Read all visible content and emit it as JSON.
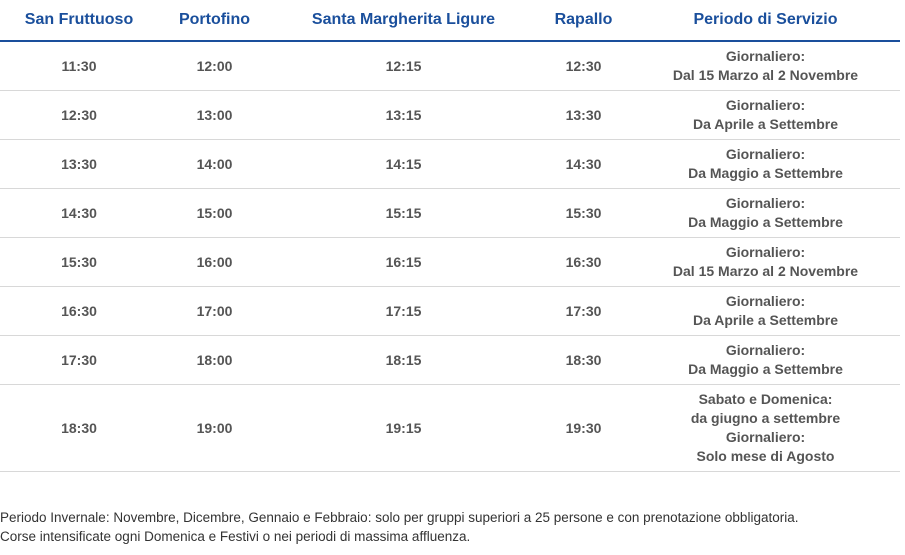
{
  "table": {
    "headers": [
      "San Fruttuoso",
      "Portofino",
      "Santa Margherita Ligure",
      "Rapallo",
      "Periodo di Servizio"
    ],
    "rows": [
      {
        "times": [
          "11:30",
          "12:00",
          "12:15",
          "12:30"
        ],
        "period": [
          "Giornaliero:",
          "Dal 15 Marzo al 2 Novembre"
        ]
      },
      {
        "times": [
          "12:30",
          "13:00",
          "13:15",
          "13:30"
        ],
        "period": [
          "Giornaliero:",
          "Da Aprile a Settembre"
        ]
      },
      {
        "times": [
          "13:30",
          "14:00",
          "14:15",
          "14:30"
        ],
        "period": [
          "Giornaliero:",
          "Da Maggio a Settembre"
        ]
      },
      {
        "times": [
          "14:30",
          "15:00",
          "15:15",
          "15:30"
        ],
        "period": [
          "Giornaliero:",
          "Da Maggio a Settembre"
        ]
      },
      {
        "times": [
          "15:30",
          "16:00",
          "16:15",
          "16:30"
        ],
        "period": [
          "Giornaliero:",
          "Dal 15 Marzo al 2 Novembre"
        ]
      },
      {
        "times": [
          "16:30",
          "17:00",
          "17:15",
          "17:30"
        ],
        "period": [
          "Giornaliero:",
          "Da Aprile a Settembre"
        ]
      },
      {
        "times": [
          "17:30",
          "18:00",
          "18:15",
          "18:30"
        ],
        "period": [
          "Giornaliero:",
          "Da Maggio a Settembre"
        ]
      },
      {
        "times": [
          "18:30",
          "19:00",
          "19:15",
          "19:30"
        ],
        "period": [
          "Sabato e Domenica:",
          "da giugno a settembre",
          "Giornaliero:",
          "Solo mese di Agosto"
        ]
      }
    ]
  },
  "notes": [
    "Periodo Invernale: Novembre, Dicembre, Gennaio e Febbraio: solo per gruppi superiori a 25 persone e con prenotazione obbligatoria.",
    "Corse intensificate ogni Domenica e Festivi o nei periodi di massima affluenza."
  ],
  "colors": {
    "header_text": "#1a4f9c",
    "cell_text": "#555555",
    "row_border": "#d8d8d8"
  }
}
